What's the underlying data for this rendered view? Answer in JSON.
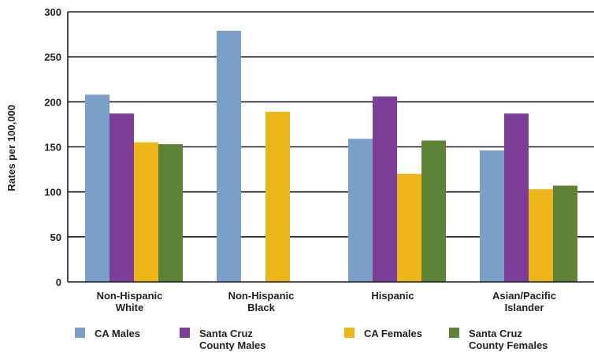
{
  "chart_data": {
    "type": "bar",
    "title": "",
    "xlabel": "",
    "ylabel": "Rates per 100,000",
    "ylim": [
      0,
      300
    ],
    "yticks": [
      0,
      50,
      100,
      150,
      200,
      250,
      300
    ],
    "grid": true,
    "legend_position": "bottom",
    "categories": [
      [
        "Non-Hispanic",
        "White"
      ],
      [
        "Non-Hispanic",
        "Black"
      ],
      [
        "Hispanic"
      ],
      [
        "Asian/Pacific",
        "Islander"
      ]
    ],
    "series": [
      {
        "name": [
          "CA Males"
        ],
        "color": "#7A9FC9",
        "values": [
          208,
          279,
          null,
          146
        ]
      },
      {
        "name": [
          "Santa Cruz",
          "County Males"
        ],
        "color": "#7D3E97",
        "values": [
          187,
          null,
          206,
          187
        ]
      },
      {
        "name": [
          "CA Females"
        ],
        "color": "#EEB518",
        "values": [
          155,
          189,
          120,
          103
        ]
      },
      {
        "name": [
          "Santa Cruz",
          "County Females"
        ],
        "color": "#5E8236",
        "values": [
          153,
          null,
          157,
          107
        ]
      }
    ],
    "extra_values": {
      "series": 0,
      "category": 2,
      "value": 159
    }
  }
}
